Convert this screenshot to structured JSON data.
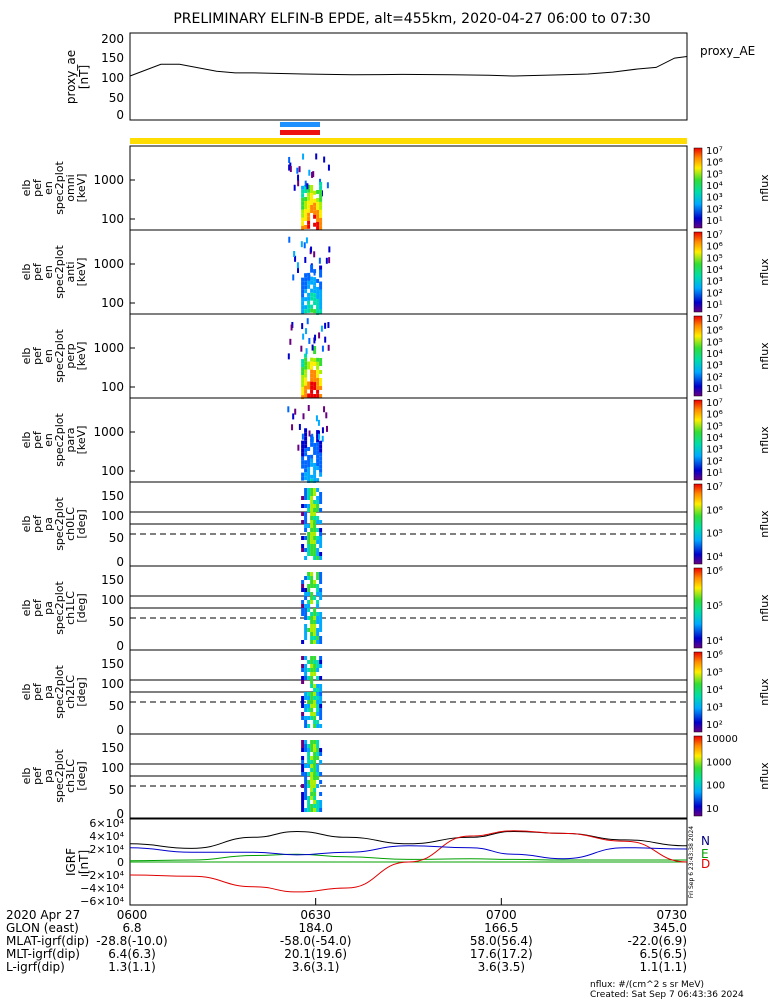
{
  "title": "PRELIMINARY ELFIN-B EPDE, alt=455km, 2020-04-27 06:00 to 07:30",
  "ae_panel": {
    "ylabel_lines": [
      "proxy_ae",
      "[nT]"
    ],
    "yticks": [
      "200",
      "150",
      "100",
      "50",
      "0"
    ],
    "legend": "proxy_AE"
  },
  "chart_data": [
    {
      "type": "line",
      "name_label": "proxy_AE",
      "x_minutes": [
        0,
        5,
        8,
        14,
        17,
        20,
        28,
        36,
        44,
        52,
        58,
        62,
        70,
        74,
        78,
        82,
        85,
        88,
        90
      ],
      "y": [
        100,
        130,
        130,
        112,
        108,
        108,
        105,
        103,
        104,
        103,
        102,
        100,
        103,
        105,
        110,
        118,
        122,
        146,
        150
      ],
      "ylim": [
        0,
        210
      ]
    },
    {
      "type": "heatmap",
      "panels": [
        {
          "ylabel": [
            "elb",
            "pef",
            "en",
            "spec2plot",
            "omni",
            "[keV]"
          ],
          "yticks": [
            "1000",
            "100"
          ],
          "cbar_ticks": [
            "10⁷",
            "10⁶",
            "10⁵",
            "10⁴",
            "10³",
            "10²",
            "10¹"
          ],
          "cbar_label": "nflux"
        },
        {
          "ylabel": [
            "elb",
            "pef",
            "en",
            "spec2plot",
            "anti",
            "[keV]"
          ],
          "yticks": [
            "1000",
            "100"
          ],
          "cbar_ticks": [
            "10⁷",
            "10⁶",
            "10⁵",
            "10⁴",
            "10³",
            "10²",
            "10¹"
          ],
          "cbar_label": "nflux"
        },
        {
          "ylabel": [
            "elb",
            "pef",
            "en",
            "spec2plot",
            "perp",
            "[keV]"
          ],
          "yticks": [
            "1000",
            "100"
          ],
          "cbar_ticks": [
            "10⁷",
            "10⁶",
            "10⁵",
            "10⁴",
            "10³",
            "10²",
            "10¹"
          ],
          "cbar_label": "nflux"
        },
        {
          "ylabel": [
            "elb",
            "pef",
            "en",
            "spec2plot",
            "para",
            "[keV]"
          ],
          "yticks": [
            "1000",
            "100"
          ],
          "cbar_ticks": [
            "10⁷",
            "10⁶",
            "10⁵",
            "10⁴",
            "10³",
            "10²",
            "10¹"
          ],
          "cbar_label": "nflux"
        },
        {
          "ylabel": [
            "elb",
            "pef",
            "pa",
            "spec2plot",
            "ch0LC",
            "[deg]"
          ],
          "yticks": [
            "150",
            "100",
            "50",
            "0"
          ],
          "cbar_ticks": [
            "10⁷",
            "10⁶",
            "10⁵",
            "10⁴"
          ],
          "cbar_label": "nflux"
        },
        {
          "ylabel": [
            "elb",
            "pef",
            "pa",
            "spec2plot",
            "ch1LC",
            "[deg]"
          ],
          "yticks": [
            "150",
            "100",
            "50",
            "0"
          ],
          "cbar_ticks": [
            "10⁶",
            "10⁵",
            "10⁴"
          ],
          "cbar_label": "nflux"
        },
        {
          "ylabel": [
            "elb",
            "pef",
            "pa",
            "spec2plot",
            "ch2LC",
            "[deg]"
          ],
          "yticks": [
            "150",
            "100",
            "50",
            "0"
          ],
          "cbar_ticks": [
            "10⁶",
            "10⁵",
            "10⁴",
            "10³",
            "10²"
          ],
          "cbar_label": "nflux"
        },
        {
          "ylabel": [
            "elb",
            "pef",
            "pa",
            "spec2plot",
            "ch3LC",
            "[deg]"
          ],
          "yticks": [
            "150",
            "100",
            "50",
            "0"
          ],
          "cbar_ticks": [
            "10000",
            "1000",
            "100",
            "10"
          ],
          "cbar_label": "nflux"
        }
      ],
      "event_time_minutes": [
        27,
        31
      ]
    },
    {
      "type": "line",
      "name": "IGRF [nT]",
      "ylabel": [
        "IGRF",
        "[nT]"
      ],
      "yticks": [
        "6×10⁴",
        "4×10⁴",
        "2×10⁴",
        "0",
        "−2×10⁴",
        "−4×10⁴",
        "−6×10⁴"
      ],
      "ylim": [
        -60000,
        60000
      ],
      "x_minutes": [
        0,
        10,
        20,
        27,
        35,
        45,
        55,
        62,
        70,
        80,
        90
      ],
      "series": [
        {
          "name": "N",
          "color": "#000000",
          "values": [
            28000,
            21000,
            38000,
            47000,
            38000,
            28000,
            38000,
            47000,
            44000,
            34000,
            25000
          ]
        },
        {
          "name": "E",
          "color": "#00a000",
          "values": [
            2000,
            3000,
            10000,
            12000,
            8000,
            4000,
            5000,
            4000,
            3000,
            3000,
            3000
          ]
        },
        {
          "name": "D",
          "color": "#e00000",
          "values": [
            -20000,
            -22000,
            -38000,
            -46000,
            -40000,
            0,
            40000,
            48000,
            44000,
            32000,
            0
          ]
        },
        {
          "name": "",
          "color": "#0000cc",
          "values": [
            22000,
            15000,
            15000,
            11000,
            15000,
            25000,
            22000,
            12000,
            5000,
            22000,
            20000
          ]
        }
      ],
      "legend_letters": [
        "N",
        "E",
        "D"
      ]
    }
  ],
  "xaxis": {
    "ticks_minutes": [
      0,
      30,
      60,
      90
    ],
    "rows": [
      {
        "label": "2020 Apr 27",
        "values": [
          "0600",
          "0630",
          "0700",
          "0730"
        ]
      },
      {
        "label": "GLON (east)",
        "values": [
          "6.8",
          "184.0",
          "166.5",
          "345.0"
        ]
      },
      {
        "label": "MLAT-igrf(dip)",
        "values": [
          "-28.8(-10.0)",
          "-58.0(-54.0)",
          "58.0(56.4)",
          "-22.0(6.9)"
        ]
      },
      {
        "label": "MLT-igrf(dip)",
        "values": [
          "6.4(6.3)",
          "20.1(19.6)",
          "17.6(17.2)",
          "6.5(6.5)"
        ]
      },
      {
        "label": "L-igrf(dip)",
        "values": [
          "1.3(1.1)",
          "3.6(3.1)",
          "3.6(3.5)",
          "1.1(1.1)"
        ]
      }
    ]
  },
  "footer": {
    "units": "nflux: #/(cm^2 s sr MeV)",
    "created": "Created: Sat Sep  7 06:43:36 2024",
    "side_stamp": "Fri Sep  6 23:43:38 2024"
  },
  "colors": {
    "status_bar": "#ffdd00",
    "bar_blue": "#1e90ff",
    "bar_red": "#ee1111"
  }
}
